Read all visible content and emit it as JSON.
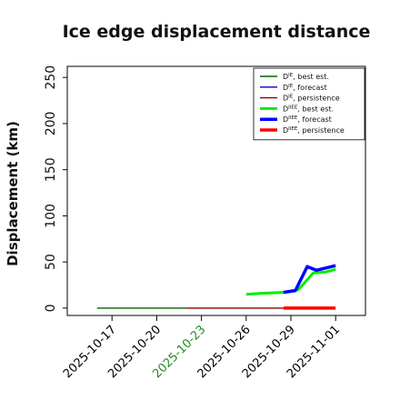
{
  "chart_data": {
    "type": "line",
    "title": "Ice edge displacement distance",
    "ylabel": "Displacement (km)",
    "xlabel": "",
    "ylim": [
      -8,
      262
    ],
    "xlim": [
      "2025-10-14",
      "2025-11-03"
    ],
    "y_ticks": [
      0,
      50,
      100,
      150,
      200,
      250
    ],
    "x_ticks": [
      {
        "label": "2025-10-17",
        "date": "2025-10-17",
        "color": "#000000"
      },
      {
        "label": "2025-10-20",
        "date": "2025-10-20",
        "color": "#000000"
      },
      {
        "label": "2025-10-23",
        "date": "2025-10-23",
        "color": "#228B22"
      },
      {
        "label": "2025-10-26",
        "date": "2025-10-26",
        "color": "#000000"
      },
      {
        "label": "2025-10-29",
        "date": "2025-10-29",
        "color": "#000000"
      },
      {
        "label": "2025-11-01",
        "date": "2025-11-01",
        "color": "#000000"
      }
    ],
    "legend_position": "top-right",
    "series": [
      {
        "name": "D^IE, best est.",
        "color": "#006400",
        "width": 1.4,
        "x": [
          "2025-10-16",
          "2025-10-20",
          "2025-10-22"
        ],
        "y": [
          0,
          0,
          0
        ]
      },
      {
        "name": "D^IE, forecast",
        "color": "#0000cd",
        "width": 1.4,
        "x": [],
        "y": []
      },
      {
        "name": "D^IE, persistence",
        "color": "#8b0000",
        "width": 1.4,
        "x": [
          "2025-10-22",
          "2025-10-28.5"
        ],
        "y": [
          0,
          0
        ]
      },
      {
        "name": "D^IIEE, best est.",
        "color": "#00ee00",
        "width": 3,
        "x": [
          "2025-10-26",
          "2025-10-27",
          "2025-10-28.5",
          "2025-10-29.5",
          "2025-10-30.5",
          "2025-10-31.3",
          "2025-11-01"
        ],
        "y": [
          15,
          16,
          17,
          20,
          38,
          39,
          42
        ]
      },
      {
        "name": "D^IIEE, forecast",
        "color": "#0000ff",
        "width": 3.5,
        "x": [
          "2025-10-28.5",
          "2025-10-29.3",
          "2025-10-30.1",
          "2025-10-30.7",
          "2025-11-01"
        ],
        "y": [
          17,
          19,
          45,
          41,
          46
        ]
      },
      {
        "name": "D^IIEE, persistence",
        "color": "#ff0000",
        "width": 3.5,
        "x": [
          "2025-10-28.5",
          "2025-11-01"
        ],
        "y": [
          0,
          0
        ]
      }
    ]
  }
}
